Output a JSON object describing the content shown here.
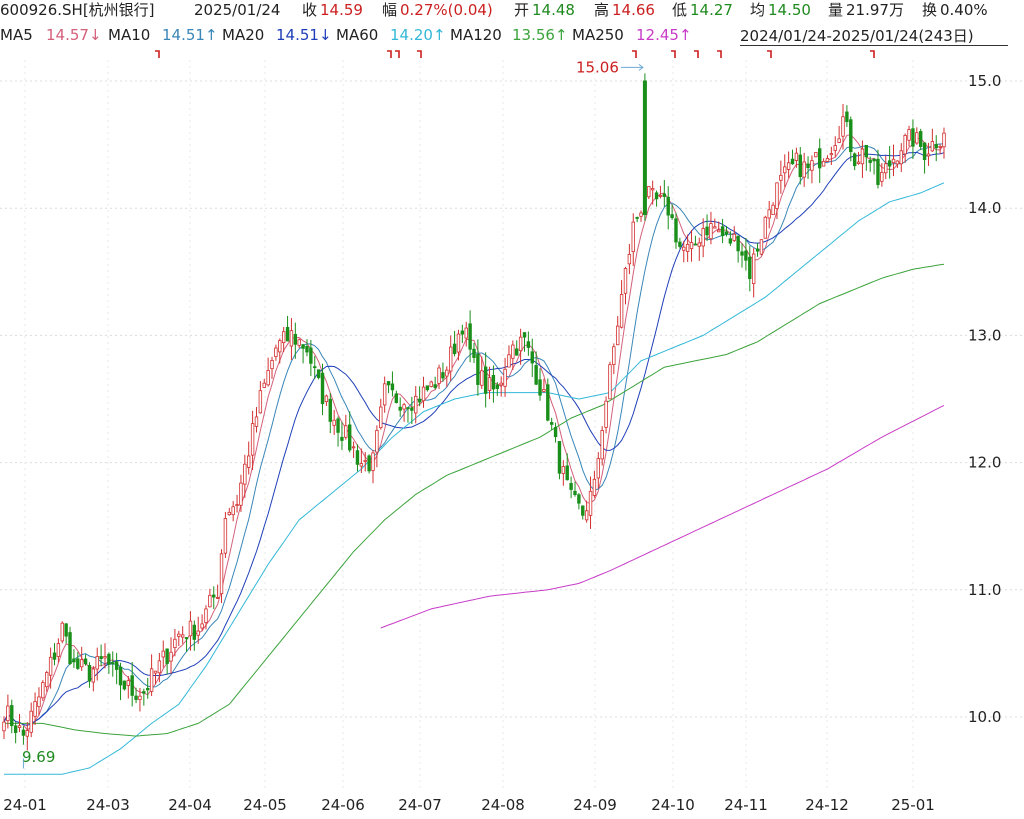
{
  "header": {
    "code": "600926.SH[杭州银行]",
    "date": "2025/01/24",
    "close_label": "收",
    "close": "14.59",
    "change_label": "幅",
    "change": "0.27%(0.04)",
    "open_label": "开",
    "open": "14.48",
    "high_label": "高",
    "high": "14.66",
    "low_label": "低",
    "low": "14.27",
    "avg_label": "均",
    "avg": "14.50",
    "vol_label": "量",
    "vol": "21.97万",
    "turn_label": "换",
    "turn": "0.40%"
  },
  "ma": {
    "ma5": "MA5",
    "ma5_val": "14.57↓",
    "ma10": "MA10",
    "ma10_val": "14.51↑",
    "ma20": "MA20",
    "ma20_val": "14.51↓",
    "ma60": "MA60",
    "ma60_val": "14.20↑",
    "ma120": "MA120",
    "ma120_val": "13.56↑",
    "ma250": "MA250",
    "ma250_val": "12.45↑",
    "range": "2024/01/24-2025/01/24(243日)"
  },
  "colors": {
    "up": "#d32f2f",
    "down": "#1a8f1a",
    "ma5": "#d4607a",
    "ma10": "#3a86b8",
    "ma20": "#1f3fb8",
    "ma60": "#33b8d8",
    "ma120": "#3ca33c",
    "ma250": "#c83cc8"
  },
  "chart_data": {
    "type": "candlestick",
    "ylim": [
      9.5,
      15.3
    ],
    "y_ticks": [
      "15.0",
      "14.0",
      "13.0",
      "12.0",
      "11.0",
      "10.0"
    ],
    "x_ticks": [
      "24-01",
      "24-03",
      "24-04",
      "24-05",
      "24-06",
      "24-07",
      "24-08",
      "24-09",
      "24-10",
      "24-11",
      "24-12",
      "25-01"
    ],
    "max_label": "15.06",
    "min_label": "9.69",
    "close_anchors": [
      [
        0,
        10.05
      ],
      [
        5,
        9.85
      ],
      [
        9,
        10.15
      ],
      [
        13,
        10.5
      ],
      [
        15,
        10.7
      ],
      [
        18,
        10.4
      ],
      [
        22,
        10.35
      ],
      [
        26,
        10.45
      ],
      [
        29,
        10.3
      ],
      [
        33,
        10.2
      ],
      [
        36,
        10.2
      ],
      [
        40,
        10.4
      ],
      [
        45,
        10.65
      ],
      [
        50,
        10.7
      ],
      [
        55,
        11.0
      ],
      [
        57,
        11.6
      ],
      [
        60,
        11.7
      ],
      [
        63,
        12.1
      ],
      [
        66,
        12.5
      ],
      [
        70,
        12.9
      ],
      [
        74,
        13.0
      ],
      [
        78,
        12.9
      ],
      [
        81,
        12.6
      ],
      [
        84,
        12.4
      ],
      [
        88,
        12.2
      ],
      [
        92,
        12.0
      ],
      [
        95,
        12.0
      ],
      [
        98,
        12.55
      ],
      [
        102,
        12.5
      ],
      [
        106,
        12.5
      ],
      [
        110,
        12.6
      ],
      [
        114,
        12.75
      ],
      [
        118,
        13.1
      ],
      [
        121,
        12.75
      ],
      [
        124,
        12.6
      ],
      [
        127,
        12.55
      ],
      [
        130,
        12.9
      ],
      [
        134,
        12.95
      ],
      [
        137,
        12.7
      ],
      [
        140,
        12.4
      ],
      [
        143,
        12.0
      ],
      [
        146,
        11.7
      ],
      [
        149,
        11.6
      ],
      [
        152,
        11.8
      ],
      [
        154,
        12.3
      ],
      [
        156,
        12.7
      ],
      [
        159,
        13.3
      ],
      [
        162,
        13.85
      ],
      [
        165,
        14.1
      ],
      [
        168,
        14.05
      ],
      [
        171,
        14.0
      ],
      [
        174,
        13.7
      ],
      [
        177,
        13.65
      ],
      [
        180,
        13.85
      ],
      [
        183,
        13.85
      ],
      [
        186,
        13.75
      ],
      [
        189,
        13.75
      ],
      [
        192,
        13.5
      ],
      [
        195,
        13.8
      ],
      [
        198,
        14.1
      ],
      [
        201,
        14.25
      ],
      [
        204,
        14.35
      ],
      [
        207,
        14.3
      ],
      [
        210,
        14.4
      ],
      [
        213,
        14.5
      ],
      [
        216,
        14.7
      ],
      [
        219,
        14.4
      ],
      [
        222,
        14.45
      ],
      [
        225,
        14.2
      ],
      [
        228,
        14.35
      ],
      [
        231,
        14.5
      ],
      [
        234,
        14.55
      ],
      [
        237,
        14.45
      ],
      [
        242,
        14.59
      ]
    ],
    "ma60_anchors": [
      [
        0,
        9.55
      ],
      [
        15,
        9.55
      ],
      [
        22,
        9.6
      ],
      [
        30,
        9.75
      ],
      [
        38,
        9.95
      ],
      [
        45,
        10.1
      ],
      [
        52,
        10.4
      ],
      [
        60,
        10.8
      ],
      [
        68,
        11.2
      ],
      [
        76,
        11.55
      ],
      [
        84,
        11.75
      ],
      [
        92,
        11.95
      ],
      [
        100,
        12.2
      ],
      [
        108,
        12.4
      ],
      [
        116,
        12.5
      ],
      [
        124,
        12.55
      ],
      [
        132,
        12.55
      ],
      [
        140,
        12.55
      ],
      [
        148,
        12.5
      ],
      [
        156,
        12.55
      ],
      [
        164,
        12.8
      ],
      [
        172,
        12.9
      ],
      [
        180,
        13.0
      ],
      [
        188,
        13.15
      ],
      [
        196,
        13.3
      ],
      [
        204,
        13.5
      ],
      [
        212,
        13.7
      ],
      [
        220,
        13.9
      ],
      [
        228,
        14.05
      ],
      [
        236,
        14.12
      ],
      [
        242,
        14.2
      ]
    ],
    "ma120_anchors": [
      [
        0,
        9.95
      ],
      [
        10,
        9.95
      ],
      [
        18,
        9.9
      ],
      [
        26,
        9.87
      ],
      [
        34,
        9.85
      ],
      [
        42,
        9.87
      ],
      [
        50,
        9.95
      ],
      [
        58,
        10.1
      ],
      [
        66,
        10.4
      ],
      [
        74,
        10.7
      ],
      [
        82,
        11.0
      ],
      [
        90,
        11.3
      ],
      [
        98,
        11.55
      ],
      [
        106,
        11.75
      ],
      [
        114,
        11.9
      ],
      [
        122,
        12.0
      ],
      [
        130,
        12.1
      ],
      [
        138,
        12.2
      ],
      [
        146,
        12.35
      ],
      [
        154,
        12.45
      ],
      [
        162,
        12.6
      ],
      [
        170,
        12.75
      ],
      [
        178,
        12.8
      ],
      [
        186,
        12.85
      ],
      [
        194,
        12.95
      ],
      [
        202,
        13.1
      ],
      [
        210,
        13.25
      ],
      [
        218,
        13.35
      ],
      [
        226,
        13.45
      ],
      [
        234,
        13.52
      ],
      [
        242,
        13.56
      ]
    ],
    "ma250_anchors": [
      [
        97,
        10.7
      ],
      [
        110,
        10.85
      ],
      [
        125,
        10.95
      ],
      [
        140,
        11.0
      ],
      [
        148,
        11.05
      ],
      [
        156,
        11.15
      ],
      [
        170,
        11.35
      ],
      [
        184,
        11.55
      ],
      [
        198,
        11.75
      ],
      [
        212,
        11.95
      ],
      [
        226,
        12.2
      ],
      [
        242,
        12.45
      ]
    ]
  }
}
